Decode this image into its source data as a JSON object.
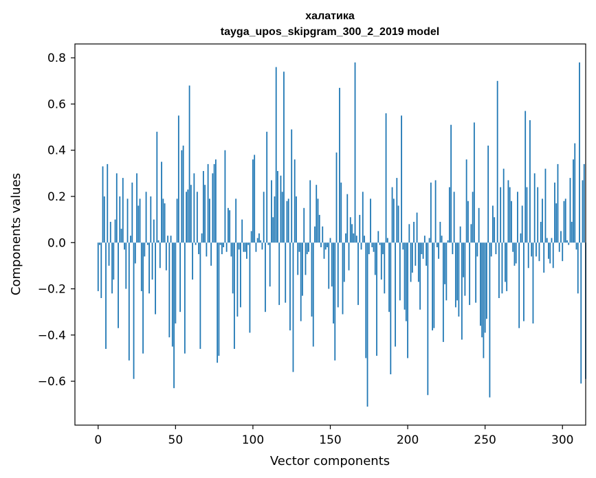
{
  "chart_data": {
    "type": "bar",
    "title": "халатика",
    "subtitle": "tayga_upos_skipgram_300_2_2019 model",
    "xlabel": "Vector components",
    "ylabel": "Components values",
    "xlim": [
      -15,
      315
    ],
    "ylim": [
      -0.79,
      0.86
    ],
    "xticks": [
      0,
      50,
      100,
      150,
      200,
      250,
      300
    ],
    "yticks": [
      -0.6,
      -0.4,
      -0.2,
      0.0,
      0.2,
      0.4,
      0.6,
      0.8
    ],
    "xtick_labels": [
      "0",
      "50",
      "100",
      "150",
      "200",
      "250",
      "300"
    ],
    "ytick_labels": [
      "−0.6",
      "−0.4",
      "−0.2",
      "0.0",
      "0.2",
      "0.4",
      "0.6",
      "0.8"
    ],
    "bar_color": "#1f77b4",
    "grid": false,
    "legend": "none",
    "values": [
      -0.21,
      -0.01,
      -0.24,
      0.33,
      0.2,
      -0.46,
      0.34,
      -0.1,
      0.09,
      -0.22,
      -0.16,
      0.1,
      0.3,
      -0.37,
      0.2,
      0.06,
      0.28,
      -0.03,
      -0.2,
      0.19,
      -0.51,
      0.03,
      0.26,
      -0.59,
      -0.09,
      0.3,
      0.16,
      0.19,
      -0.21,
      -0.48,
      -0.06,
      0.22,
      -0.01,
      -0.22,
      0.2,
      -0.16,
      0.1,
      -0.31,
      0.48,
      0.01,
      -0.11,
      0.35,
      0.19,
      0.17,
      -0.12,
      0.03,
      -0.41,
      0.03,
      -0.45,
      -0.63,
      -0.35,
      0.19,
      0.55,
      -0.3,
      0.4,
      0.42,
      -0.48,
      0.22,
      0.23,
      0.68,
      0.25,
      -0.16,
      0.3,
      -0.01,
      0.22,
      -0.05,
      -0.46,
      0.04,
      0.31,
      0.25,
      -0.06,
      0.34,
      0.19,
      -0.1,
      0.3,
      0.34,
      0.36,
      -0.52,
      -0.49,
      -0.01,
      -0.05,
      -0.02,
      0.4,
      -0.04,
      0.15,
      0.14,
      -0.06,
      -0.22,
      -0.46,
      0.19,
      -0.32,
      -0.03,
      -0.28,
      0.1,
      -0.04,
      -0.04,
      -0.07,
      -0.01,
      -0.39,
      0.05,
      0.36,
      0.38,
      -0.04,
      0.02,
      0.04,
      0.01,
      -0.03,
      0.22,
      -0.3,
      0.48,
      -0.01,
      -0.19,
      0.27,
      0.11,
      0.2,
      0.76,
      0.31,
      -0.27,
      0.29,
      0.22,
      0.74,
      -0.26,
      0.18,
      0.19,
      -0.38,
      0.49,
      -0.56,
      0.36,
      0.2,
      -0.14,
      -0.04,
      -0.34,
      -0.23,
      0.15,
      -0.14,
      -0.05,
      -0.04,
      0.27,
      -0.32,
      -0.45,
      0.07,
      0.25,
      0.19,
      0.12,
      -0.02,
      0.07,
      -0.07,
      -0.03,
      -0.02,
      -0.2,
      0.02,
      -0.19,
      -0.35,
      -0.51,
      0.39,
      -0.28,
      0.67,
      0.26,
      -0.31,
      -0.17,
      0.04,
      0.21,
      -0.12,
      0.11,
      0.08,
      0.04,
      0.78,
      0.03,
      -0.27,
      0.12,
      -0.03,
      0.22,
      0.03,
      -0.5,
      -0.71,
      -0.05,
      0.19,
      -0.02,
      -0.04,
      -0.14,
      -0.49,
      0.05,
      -0.01,
      -0.16,
      -0.05,
      -0.22,
      0.56,
      0.02,
      -0.3,
      -0.57,
      0.24,
      0.19,
      -0.45,
      0.28,
      0.16,
      -0.25,
      0.55,
      -0.03,
      -0.29,
      -0.34,
      -0.5,
      0.08,
      -0.17,
      -0.13,
      0.09,
      -0.1,
      0.13,
      -0.17,
      -0.29,
      -0.05,
      -0.07,
      0.03,
      -0.1,
      -0.66,
      0.02,
      0.26,
      -0.38,
      -0.37,
      0.27,
      -0.02,
      -0.07,
      0.09,
      0.03,
      -0.43,
      -0.18,
      -0.25,
      0.01,
      0.24,
      0.51,
      -0.05,
      0.22,
      -0.28,
      -0.25,
      -0.32,
      0.07,
      -0.42,
      -0.15,
      -0.23,
      0.36,
      0.18,
      -0.27,
      0.08,
      0.22,
      0.52,
      -0.26,
      -0.06,
      0.15,
      -0.36,
      -0.41,
      -0.5,
      -0.39,
      -0.33,
      0.42,
      -0.67,
      -0.06,
      0.16,
      0.11,
      -0.05,
      0.7,
      -0.24,
      0.24,
      -0.22,
      0.32,
      -0.17,
      -0.21,
      0.27,
      0.24,
      0.18,
      -0.04,
      -0.1,
      -0.09,
      0.22,
      -0.37,
      0.04,
      0.16,
      -0.34,
      0.57,
      0.24,
      -0.11,
      0.53,
      -0.06,
      -0.35,
      0.3,
      -0.06,
      0.24,
      -0.08,
      0.09,
      0.19,
      -0.13,
      0.32,
      0.02,
      -0.07,
      -0.09,
      0.02,
      -0.11,
      0.26,
      0.17,
      0.34,
      -0.04,
      0.05,
      -0.08,
      0.18,
      0.19,
      0.01,
      -0.01,
      0.28,
      0.09,
      0.36,
      0.43,
      -0.03,
      -0.22,
      0.78,
      -0.61,
      0.27,
      0.34,
      -0.59
    ]
  }
}
